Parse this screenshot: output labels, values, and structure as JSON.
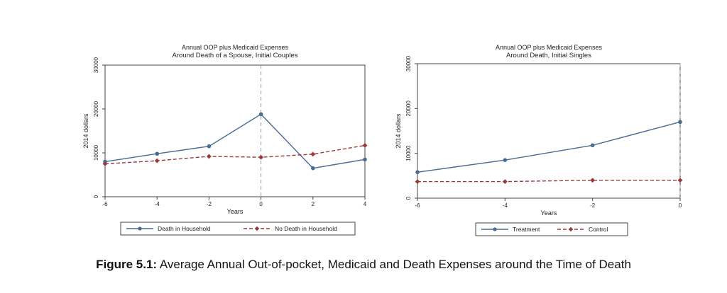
{
  "figure": {
    "label": "Figure 5.1:",
    "caption": "Average Annual Out-of-pocket, Medicaid and Death Expenses around the Time of Death"
  },
  "colors": {
    "series_solid": "#4a6a92",
    "series_dashed": "#9a3a3a",
    "axis": "#444444",
    "refline": "#999999"
  },
  "chart_data": [
    {
      "type": "line",
      "title": "Annual OOP plus Medicaid Expenses",
      "subtitle": "Around Death of a Spouse, Initial Couples",
      "xlabel": "Years",
      "ylabel": "2014 dollars",
      "x": [
        -6,
        -4,
        -2,
        0,
        2,
        4
      ],
      "xticks": [
        "-6",
        "-4",
        "-2",
        "0",
        "2",
        "4"
      ],
      "yticks": [
        "0",
        "10000",
        "20000",
        "30000"
      ],
      "xlim": [
        -6,
        4
      ],
      "ylim": [
        0,
        30000
      ],
      "vline": 0,
      "legend_position": "bottom",
      "series": [
        {
          "name": "Death in Household",
          "style": "solid",
          "values": [
            8000,
            9800,
            11500,
            18800,
            6500,
            8500
          ]
        },
        {
          "name": "No Death in Household",
          "style": "dashed",
          "values": [
            7500,
            8200,
            9200,
            9000,
            9700,
            11700
          ]
        }
      ]
    },
    {
      "type": "line",
      "title": "Annual OOP plus Medicaid Expenses",
      "subtitle": "Around Death, Initial Singles",
      "xlabel": "Years",
      "ylabel": "2014 dollars",
      "x": [
        -6,
        -4,
        -2,
        0
      ],
      "xticks": [
        "-6",
        "-4",
        "-2",
        "0"
      ],
      "yticks": [
        "0",
        "10000",
        "20000",
        "30000"
      ],
      "xlim": [
        -6,
        0
      ],
      "ylim": [
        0,
        30000
      ],
      "vline": 0,
      "legend_position": "bottom",
      "series": [
        {
          "name": "Treatment",
          "style": "solid",
          "values": [
            5800,
            8500,
            11800,
            17000
          ]
        },
        {
          "name": "Control",
          "style": "dashed",
          "values": [
            3700,
            3700,
            4000,
            4000
          ]
        }
      ]
    }
  ]
}
